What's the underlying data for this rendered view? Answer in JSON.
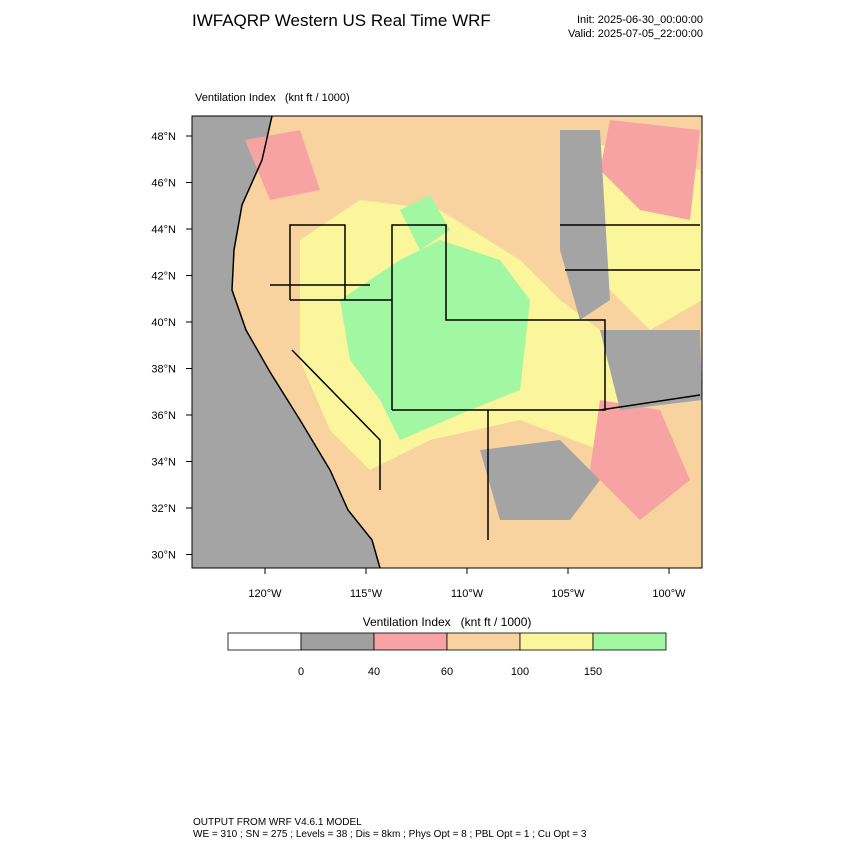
{
  "header": {
    "title": "IWFAQRP Western US Real Time WRF",
    "init": "Init: 2025-06-30_00:00:00",
    "valid": "Valid: 2025-07-05_22:00:00"
  },
  "plot": {
    "title": "Ventilation Index   (knt ft / 1000)",
    "lat_labels": [
      "48°N",
      "46°N",
      "44°N",
      "42°N",
      "40°N",
      "38°N",
      "36°N",
      "34°N",
      "32°N",
      "30°N"
    ],
    "lon_labels": [
      "120°W",
      "115°W",
      "110°W",
      "105°W",
      "100°W"
    ]
  },
  "colorbar": {
    "title": "Ventilation Index   (knt ft / 1000)",
    "colors": [
      "#ffffff",
      "#a0a0a0",
      "#f7a3a3",
      "#f8d3a0",
      "#fbf59c",
      "#a2f7a2"
    ],
    "labels": [
      "0",
      "40",
      "60",
      "100",
      "150"
    ]
  },
  "footer": {
    "line1": "OUTPUT FROM WRF V4.6.1 MODEL",
    "line2": "WE = 310 ; SN = 275 ; Levels = 38 ; Dis = 8km ; Phys Opt = 8 ; PBL Opt = 1 ; Cu Opt = 3"
  }
}
